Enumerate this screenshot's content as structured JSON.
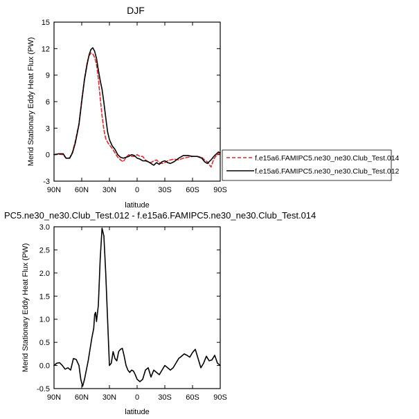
{
  "chart_data": [
    {
      "type": "line",
      "title": "DJF",
      "xlabel": "latitude",
      "ylabel": "Merid Stationary Eddy Heat Flux (PW)",
      "xlim": [
        90,
        -90
      ],
      "ylim": [
        -3,
        15
      ],
      "xticks": [
        90,
        60,
        30,
        0,
        -30,
        -60,
        -90
      ],
      "xtick_labels": [
        "90N",
        "60N",
        "30N",
        "0",
        "30S",
        "60S",
        "90S"
      ],
      "yticks": [
        -3,
        0,
        3,
        6,
        9,
        12,
        15
      ],
      "ytick_labels": [
        "-3",
        "0",
        "3",
        "6",
        "9",
        "12",
        "15"
      ],
      "legend_position": "right",
      "series": [
        {
          "name": "f.e15a6.FAMIPC5.ne30_ne30.Club_Test.014",
          "color": "#e8262a",
          "dash": "dashed",
          "x": [
            90,
            85,
            80,
            77,
            73,
            70,
            67,
            63,
            60,
            57,
            54,
            52,
            50,
            48,
            46,
            44,
            42,
            40,
            38,
            36,
            34,
            32,
            30,
            27,
            24,
            21,
            18,
            15,
            12,
            9,
            6,
            3,
            0,
            -3,
            -6,
            -9,
            -12,
            -15,
            -18,
            -21,
            -24,
            -27,
            -30,
            -33,
            -36,
            -40,
            -45,
            -50,
            -55,
            -60,
            -65,
            -70,
            -73,
            -76,
            -80,
            -83,
            -85,
            -88,
            -90
          ],
          "y": [
            0.0,
            0.05,
            0.0,
            -0.4,
            -0.35,
            0.3,
            1.5,
            3.5,
            6.2,
            8.6,
            10.5,
            11.2,
            11.5,
            11.4,
            11.0,
            10.2,
            8.6,
            6.4,
            4.4,
            2.8,
            1.8,
            1.4,
            1.1,
            0.7,
            0.2,
            -0.3,
            -0.6,
            -0.8,
            -0.3,
            0.0,
            -0.2,
            -0.2,
            0.0,
            -0.2,
            -0.2,
            -0.6,
            -0.8,
            -0.9,
            -0.7,
            -0.6,
            -0.9,
            -1.0,
            -0.9,
            -0.7,
            -0.6,
            -0.5,
            -0.6,
            -0.4,
            -0.3,
            -0.2,
            -0.2,
            -0.3,
            -0.6,
            -0.8,
            -1.4,
            -0.5,
            -0.2,
            0.1,
            0.2
          ]
        },
        {
          "name": "f.e15a6.FAMIPC5.ne30_ne30.Club_Test.012",
          "color": "#000000",
          "dash": "solid",
          "x": [
            90,
            85,
            80,
            77,
            73,
            70,
            67,
            63,
            60,
            57,
            54,
            52,
            50,
            48,
            46,
            44,
            42,
            40,
            38,
            36,
            34,
            32,
            30,
            27,
            24,
            21,
            18,
            15,
            12,
            9,
            6,
            3,
            0,
            -3,
            -6,
            -9,
            -12,
            -15,
            -18,
            -21,
            -24,
            -27,
            -30,
            -33,
            -36,
            -40,
            -45,
            -50,
            -55,
            -60,
            -65,
            -70,
            -73,
            -76,
            -80,
            -83,
            -85,
            -88,
            -90
          ],
          "y": [
            0.0,
            0.1,
            0.1,
            -0.4,
            -0.4,
            0.2,
            1.3,
            3.4,
            6.0,
            8.5,
            10.3,
            11.3,
            11.9,
            12.1,
            11.7,
            10.9,
            9.6,
            8.4,
            7.4,
            5.9,
            4.2,
            2.6,
            1.7,
            1.0,
            0.6,
            0.0,
            -0.3,
            -0.4,
            -0.3,
            -0.2,
            0.0,
            -0.1,
            -0.4,
            -0.5,
            -0.7,
            -0.7,
            -0.8,
            -1.0,
            -1.2,
            -0.9,
            -1.1,
            -0.8,
            -0.7,
            -0.9,
            -1.0,
            -0.8,
            -0.4,
            -0.1,
            -0.1,
            -0.2,
            -0.2,
            -0.4,
            -0.8,
            -1.0,
            -0.6,
            -0.2,
            0.0,
            0.3,
            0.2
          ]
        }
      ]
    },
    {
      "type": "line",
      "title": "PC5.ne30_ne30.Club_Test.012 - f.e15a6.FAMIPC5.ne30_ne30.Club_Test.014",
      "xlabel": "latitude",
      "ylabel": "Merid Stationary Eddy Heat Flux (PW)",
      "xlim": [
        90,
        -90
      ],
      "ylim": [
        -0.5,
        3.0
      ],
      "xticks": [
        90,
        60,
        30,
        0,
        -30,
        -60,
        -90
      ],
      "xtick_labels": [
        "90N",
        "60N",
        "30N",
        "0",
        "30S",
        "60S",
        "90S"
      ],
      "yticks": [
        -0.5,
        0.0,
        0.5,
        1.0,
        1.5,
        2.0,
        2.5,
        3.0
      ],
      "ytick_labels": [
        "-0.5",
        "0.0",
        "0.5",
        "1.0",
        "1.5",
        "2.0",
        "2.5",
        "3.0"
      ],
      "series": [
        {
          "color": "#000000",
          "dash": "solid",
          "x": [
            90,
            87,
            84,
            81,
            78,
            75,
            72,
            69,
            66,
            63,
            61,
            59,
            57,
            55,
            53,
            51,
            49,
            47,
            46,
            45,
            44,
            42,
            40,
            38,
            36,
            34,
            33,
            32,
            30,
            28,
            26,
            24,
            22,
            20,
            18,
            16,
            14,
            12,
            10,
            8,
            6,
            4,
            2,
            0,
            -3,
            -6,
            -9,
            -12,
            -15,
            -18,
            -21,
            -24,
            -27,
            -30,
            -33,
            -36,
            -39,
            -42,
            -45,
            -48,
            -51,
            -54,
            -57,
            -60,
            -63,
            -66,
            -69,
            -72,
            -75,
            -78,
            -81,
            -84,
            -87,
            -90
          ],
          "y": [
            0.0,
            0.05,
            0.06,
            0.0,
            -0.08,
            -0.05,
            -0.1,
            0.15,
            0.13,
            0.0,
            -0.3,
            -0.45,
            -0.3,
            -0.1,
            0.1,
            0.35,
            0.6,
            0.8,
            1.1,
            1.15,
            0.95,
            1.3,
            2.3,
            2.97,
            2.8,
            2.0,
            1.5,
            1.0,
            0.0,
            0.05,
            0.3,
            0.15,
            0.1,
            0.3,
            0.35,
            0.37,
            0.2,
            0.0,
            -0.1,
            -0.15,
            -0.1,
            -0.12,
            -0.2,
            -0.3,
            -0.35,
            -0.3,
            -0.1,
            -0.05,
            -0.25,
            -0.1,
            -0.15,
            -0.2,
            -0.1,
            0.0,
            -0.05,
            -0.1,
            -0.05,
            0.05,
            0.15,
            0.2,
            0.25,
            0.22,
            0.18,
            0.28,
            0.35,
            0.15,
            -0.05,
            0.05,
            0.2,
            0.1,
            0.12,
            0.22,
            0.05,
            0.0
          ]
        }
      ]
    }
  ]
}
